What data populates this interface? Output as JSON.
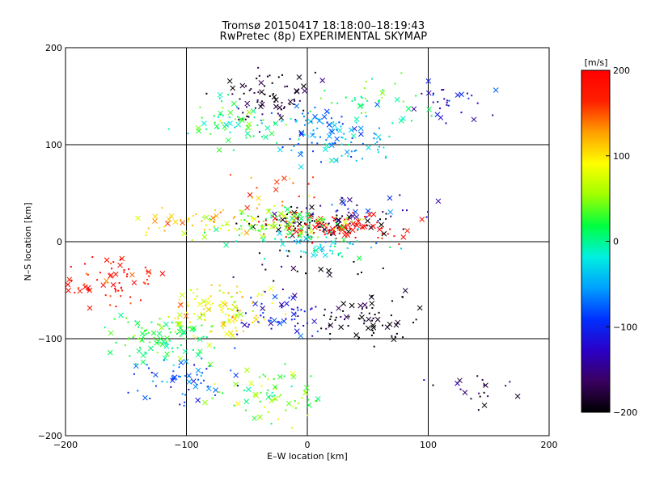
{
  "title": "Tromsø 20150417 18:18:00–18:19:43",
  "subtitle": "RwPretec (8p) EXPERIMENTAL SKYMAP",
  "chart_data": {
    "type": "scatter",
    "title": "Tromsø 20150417 18:18:00–18:19:43",
    "subtitle": "RwPretec (8p) EXPERIMENTAL SKYMAP",
    "xlabel": "E–W location [km]",
    "ylabel": "N–S location [km]",
    "xlim": [
      -200,
      200
    ],
    "ylim": [
      -200,
      200
    ],
    "xticks": [
      -200,
      -100,
      0,
      100,
      200
    ],
    "yticks": [
      -200,
      -100,
      0,
      100,
      200
    ],
    "grid": true,
    "colorbar": {
      "label": "[m/s]",
      "range": [
        -200,
        200
      ],
      "ticks": [
        200,
        100,
        0,
        -100,
        -200
      ],
      "colormap": [
        "#000000",
        "#3a0060",
        "#2a00c8",
        "#0030ff",
        "#00a0ff",
        "#00f0e0",
        "#00ff40",
        "#a0ff00",
        "#ffff00",
        "#ffa000",
        "#ff2000",
        "#ff0000"
      ]
    },
    "markers": [
      "+ (dot)",
      "x"
    ],
    "clusters": [
      {
        "x": -35,
        "y": 150,
        "v": -190,
        "n": 70
      },
      {
        "x": 15,
        "y": 118,
        "v": -70,
        "n": 60
      },
      {
        "x": -60,
        "y": 122,
        "v": 10,
        "n": 70
      },
      {
        "x": 25,
        "y": 103,
        "v": -40,
        "n": 60
      },
      {
        "x": 50,
        "y": 145,
        "v": 20,
        "n": 40
      },
      {
        "x": 120,
        "y": 140,
        "v": -110,
        "n": 30
      },
      {
        "x": 10,
        "y": 20,
        "v": -200,
        "n": 80
      },
      {
        "x": 25,
        "y": 15,
        "v": 200,
        "n": 100
      },
      {
        "x": -20,
        "y": 20,
        "v": 40,
        "n": 100
      },
      {
        "x": -85,
        "y": 20,
        "v": 110,
        "n": 50
      },
      {
        "x": 55,
        "y": 35,
        "v": -120,
        "n": 30
      },
      {
        "x": -25,
        "y": 50,
        "v": 140,
        "n": 25
      },
      {
        "x": 10,
        "y": -5,
        "v": -30,
        "n": 60
      },
      {
        "x": 0,
        "y": -25,
        "v": -190,
        "n": 20
      },
      {
        "x": -160,
        "y": -40,
        "v": 180,
        "n": 70
      },
      {
        "x": -120,
        "y": -100,
        "v": 20,
        "n": 100
      },
      {
        "x": -70,
        "y": -70,
        "v": 90,
        "n": 120
      },
      {
        "x": -20,
        "y": -75,
        "v": -110,
        "n": 60
      },
      {
        "x": 50,
        "y": -80,
        "v": -200,
        "n": 70
      },
      {
        "x": -30,
        "y": -160,
        "v": 40,
        "n": 70
      },
      {
        "x": -105,
        "y": -140,
        "v": -80,
        "n": 60
      },
      {
        "x": 140,
        "y": -150,
        "v": -170,
        "n": 20
      }
    ]
  }
}
